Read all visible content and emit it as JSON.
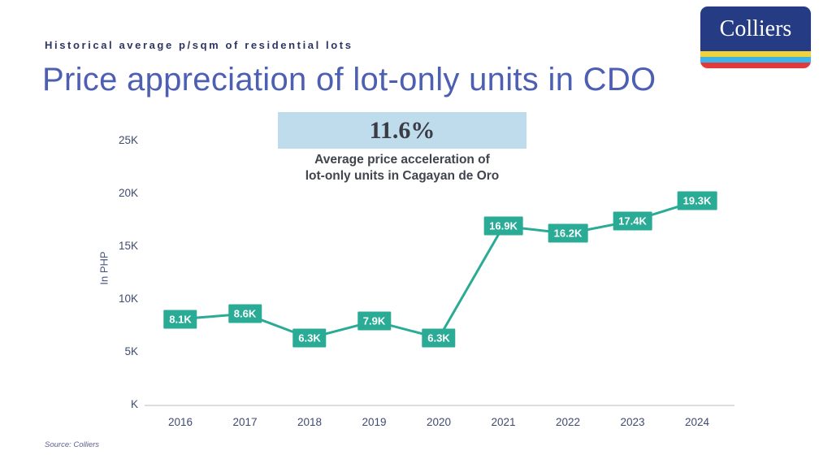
{
  "header": {
    "eyebrow": "Historical average p/sqm of residential lots",
    "title": "Price appreciation of lot-only units in CDO"
  },
  "logo": {
    "text": "Colliers",
    "bg": "#253c85",
    "stripes": [
      "#f2d23a",
      "#3eb4e6",
      "#e13a3e"
    ]
  },
  "highlight": {
    "value": "11.6%",
    "caption_line1": "Average price acceleration of",
    "caption_line2": "lot-only units in Cagayan de Oro",
    "bg": "#bedcec"
  },
  "chart_data": {
    "type": "line",
    "title": "Price appreciation of lot-only units in CDO",
    "categories": [
      "2016",
      "2017",
      "2018",
      "2019",
      "2020",
      "2021",
      "2022",
      "2023",
      "2024"
    ],
    "values": [
      8.1,
      8.6,
      6.3,
      7.9,
      6.3,
      16.9,
      16.2,
      17.4,
      19.3
    ],
    "point_labels": [
      "8.1K",
      "8.6K",
      "6.3K",
      "7.9K",
      "6.3K",
      "16.9K",
      "16.2K",
      "17.4K",
      "19.3K"
    ],
    "ylabel": "In PHP",
    "y_ticks": [
      {
        "value": 0,
        "label": "K"
      },
      {
        "value": 5,
        "label": "5K"
      },
      {
        "value": 10,
        "label": "10K"
      },
      {
        "value": 15,
        "label": "15K"
      },
      {
        "value": 20,
        "label": "20K"
      },
      {
        "value": 25,
        "label": "25K"
      }
    ],
    "ylim": [
      0,
      27
    ],
    "grid": false,
    "legend": false,
    "line_color": "#2aab96",
    "label_text_color": "#ffffff"
  },
  "footer": {
    "source": "Source: Colliers"
  }
}
